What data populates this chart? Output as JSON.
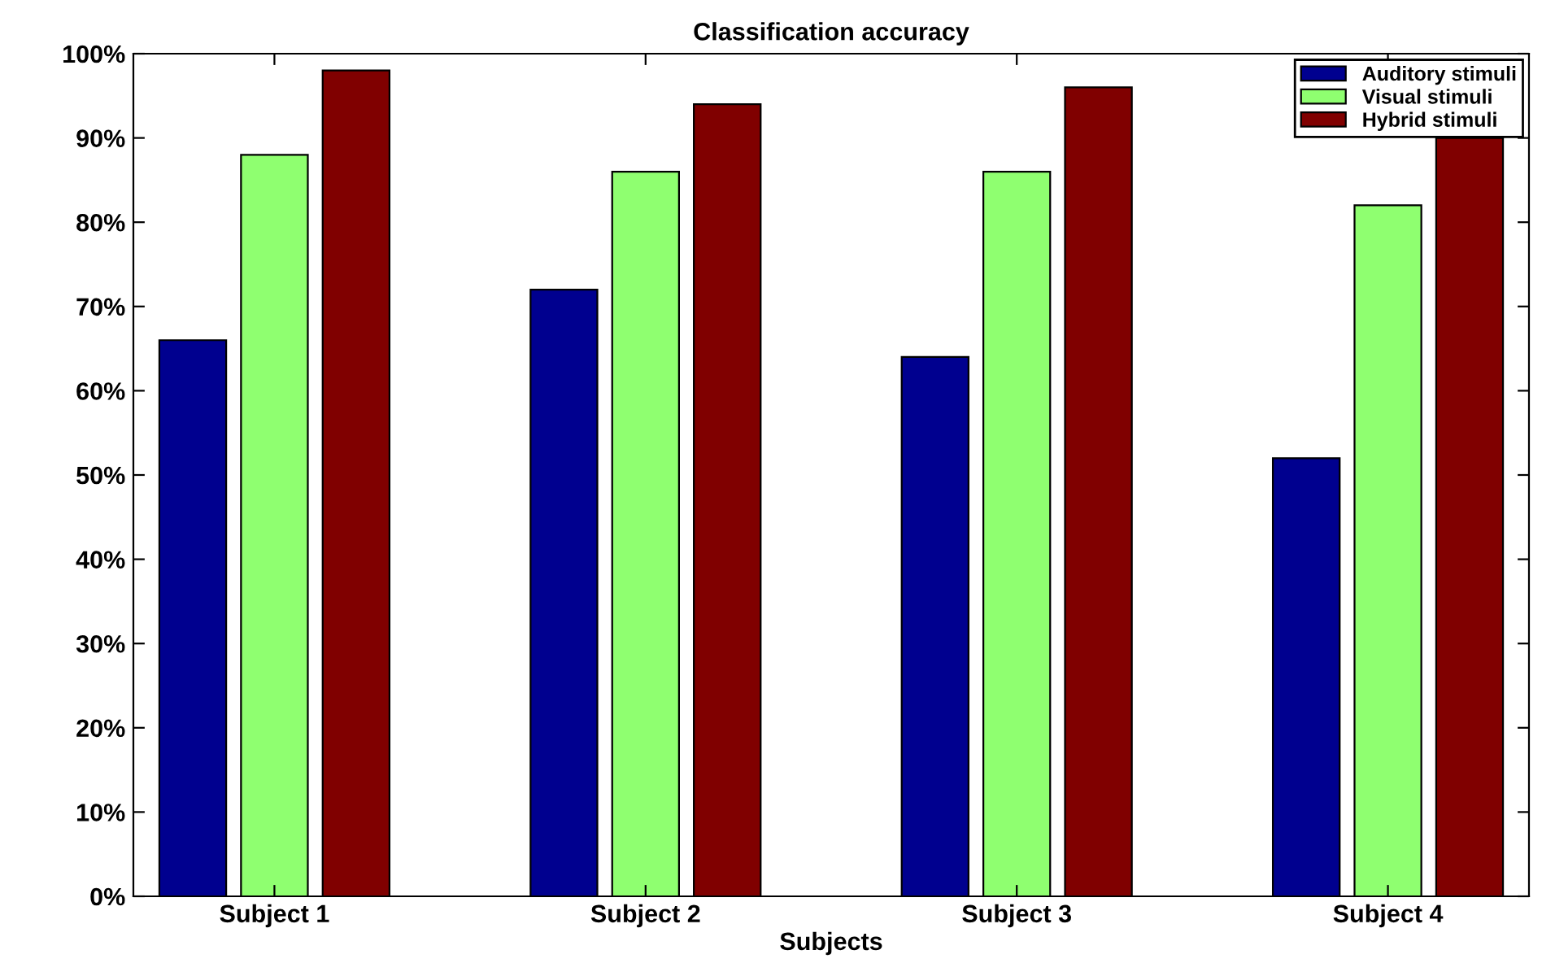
{
  "chart_data": {
    "type": "bar",
    "title": "Classification accuracy",
    "xlabel": "Subjects",
    "categories": [
      "Subject 1",
      "Subject 2",
      "Subject 3",
      "Subject 4"
    ],
    "series": [
      {
        "name": "Auditory stimuli",
        "color": "#00008f",
        "values": [
          66,
          72,
          64,
          52
        ]
      },
      {
        "name": "Visual stimuli",
        "color": "#8fff70",
        "values": [
          88,
          86,
          86,
          82
        ]
      },
      {
        "name": "Hybrid stimuli",
        "color": "#800000",
        "values": [
          98,
          94,
          96,
          90
        ]
      }
    ],
    "ylim": [
      0,
      100
    ],
    "yticks": [
      {
        "value": 0,
        "label": "0%"
      },
      {
        "value": 10,
        "label": "10%"
      },
      {
        "value": 20,
        "label": "20%"
      },
      {
        "value": 30,
        "label": "30%"
      },
      {
        "value": 40,
        "label": "40%"
      },
      {
        "value": 50,
        "label": "50%"
      },
      {
        "value": 60,
        "label": "60%"
      },
      {
        "value": 70,
        "label": "70%"
      },
      {
        "value": 80,
        "label": "80%"
      },
      {
        "value": 90,
        "label": "90%"
      },
      {
        "value": 100,
        "label": "100%"
      }
    ],
    "grid": false,
    "legend": "top right"
  }
}
